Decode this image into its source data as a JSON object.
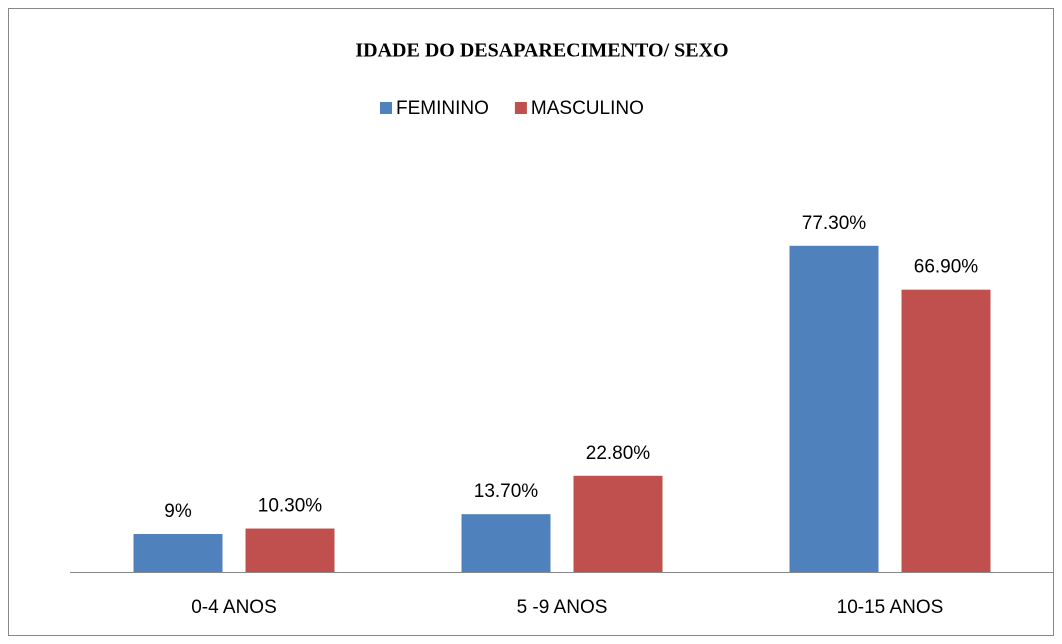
{
  "chart_data": {
    "type": "bar",
    "title": "IDADE DO  DESAPARECIMENTO/ SEXO",
    "categories": [
      "0-4  ANOS",
      "5 -9 ANOS",
      "10-15 ANOS"
    ],
    "series": [
      {
        "name": "FEMININO",
        "color": "#4f81bd",
        "values": [
          9,
          13.7,
          77.3
        ],
        "value_labels": [
          "9%",
          "13.70%",
          "77.30%"
        ]
      },
      {
        "name": "MASCULINO",
        "color": "#c0504d",
        "values": [
          10.3,
          22.8,
          66.9
        ],
        "value_labels": [
          "10.30%",
          "22.80%",
          "66.90%"
        ]
      }
    ],
    "ylim": [
      0,
      100
    ],
    "legend": "top"
  }
}
